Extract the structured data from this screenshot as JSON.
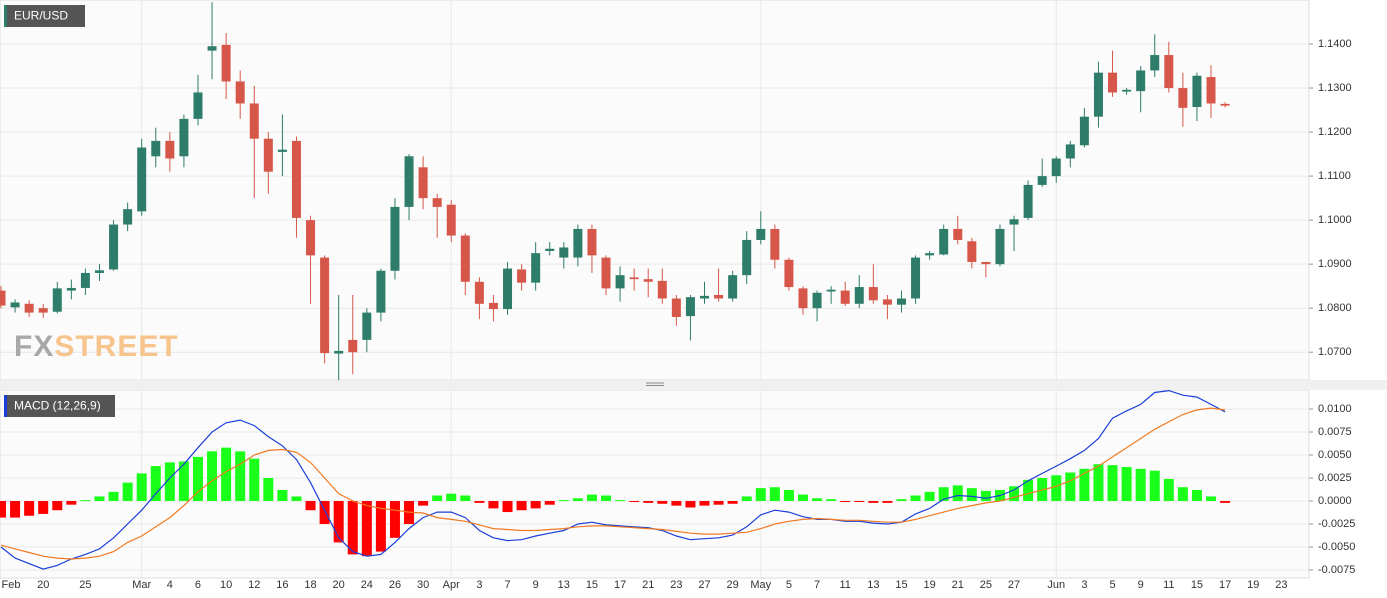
{
  "chart_data": [
    {
      "type": "candlestick",
      "title": "EUR/USD",
      "watermark": {
        "prefix": "FX",
        "suffix": "STREET"
      },
      "categories": [
        "Feb",
        null,
        null,
        "20",
        null,
        null,
        "25",
        null,
        null,
        null,
        "Mar",
        null,
        "4",
        null,
        "6",
        null,
        "10",
        null,
        "12",
        null,
        "16",
        null,
        "18",
        null,
        "20",
        null,
        "24",
        null,
        "26",
        null,
        "30",
        null,
        "Apr",
        null,
        "3",
        null,
        "7",
        null,
        "9",
        null,
        "13",
        null,
        "15",
        null,
        "17",
        null,
        "21",
        null,
        "23",
        null,
        "27",
        null,
        "29",
        null,
        "May",
        null,
        "5",
        null,
        "7",
        null,
        "11",
        null,
        "13",
        null,
        "15",
        null,
        "19",
        null,
        "21",
        null,
        "25",
        null,
        "27",
        null,
        null,
        "Jun",
        null,
        "3",
        null,
        "5",
        null,
        "9",
        null,
        "11",
        null,
        "15",
        null,
        "17",
        null,
        "19",
        null,
        "23"
      ],
      "open": [
        1.084,
        1.0802,
        1.081,
        1.08,
        1.0792,
        1.084,
        1.0846,
        1.088,
        1.0888,
        1.099,
        1.102,
        1.1145,
        1.118,
        1.1145,
        1.123,
        1.1385,
        1.1398,
        1.1315,
        1.1265,
        1.1185,
        1.1155,
        1.118,
        1.1,
        1.0915,
        1.0697,
        1.0728,
        1.0728,
        1.079,
        1.0885,
        1.103,
        1.112,
        1.105,
        1.1035,
        1.0965,
        1.086,
        1.0812,
        1.0798,
        1.0888,
        1.0858,
        1.093,
        1.0915,
        1.0915,
        1.098,
        1.0915,
        1.0845,
        1.087,
        1.0866,
        1.0862,
        1.0822,
        1.0782,
        1.0822,
        1.083,
        1.0822,
        1.0875,
        1.0955,
        1.098,
        1.091,
        1.0845,
        1.08,
        1.0838,
        1.084,
        1.081,
        1.0848,
        1.082,
        1.0808,
        1.0822,
        1.092,
        1.0922,
        1.098,
        1.0952,
        1.0905,
        1.09,
        1.099,
        1.1005,
        1.108,
        1.11,
        1.114,
        1.117,
        1.1235,
        1.1335,
        1.1292,
        1.1293,
        1.134,
        1.1375,
        1.13,
        1.1257,
        1.1325,
        1.1264,
        null,
        null,
        null,
        null
      ],
      "high": [
        1.085,
        1.082,
        1.0818,
        1.081,
        1.086,
        1.0865,
        1.089,
        1.09,
        1.1,
        1.104,
        1.1185,
        1.121,
        1.12,
        1.124,
        1.133,
        1.1495,
        1.1425,
        1.134,
        1.1305,
        1.12,
        1.124,
        1.119,
        1.101,
        1.092,
        1.083,
        1.083,
        1.08,
        1.089,
        1.105,
        1.115,
        1.1145,
        1.106,
        1.1045,
        1.097,
        1.087,
        1.083,
        1.0905,
        1.09,
        1.095,
        1.095,
        1.095,
        1.099,
        1.099,
        1.092,
        1.0895,
        1.089,
        1.089,
        1.089,
        1.083,
        1.083,
        1.086,
        1.089,
        1.0885,
        1.0975,
        1.102,
        1.099,
        1.0915,
        1.085,
        1.084,
        1.085,
        1.086,
        1.0875,
        1.09,
        1.083,
        1.084,
        1.092,
        1.093,
        1.099,
        1.101,
        1.096,
        1.0905,
        1.099,
        1.101,
        1.109,
        1.114,
        1.1145,
        1.118,
        1.1255,
        1.136,
        1.1385,
        1.13,
        1.135,
        1.1422,
        1.1405,
        1.1335,
        1.1335,
        1.1352,
        1.1268,
        null,
        null,
        null,
        null
      ],
      "low": [
        1.08,
        1.079,
        1.078,
        1.0778,
        1.0788,
        1.082,
        1.083,
        1.0862,
        1.0885,
        1.0975,
        1.101,
        1.112,
        1.111,
        1.112,
        1.1215,
        1.132,
        1.1275,
        1.123,
        1.105,
        1.106,
        1.11,
        1.096,
        1.081,
        1.0675,
        1.0636,
        1.065,
        1.07,
        1.077,
        1.0865,
        1.1,
        1.1025,
        1.096,
        1.095,
        1.083,
        1.0775,
        1.077,
        1.0785,
        1.084,
        1.084,
        1.092,
        1.089,
        1.0895,
        1.088,
        1.083,
        1.0815,
        1.084,
        1.0825,
        1.081,
        1.076,
        1.0727,
        1.081,
        1.0815,
        1.0815,
        1.0855,
        1.0945,
        1.089,
        1.084,
        1.0785,
        1.077,
        1.081,
        1.0805,
        1.08,
        1.081,
        1.0775,
        1.079,
        1.081,
        1.091,
        1.092,
        1.0945,
        1.089,
        1.087,
        1.0895,
        1.093,
        1.1,
        1.1075,
        1.1085,
        1.112,
        1.1165,
        1.121,
        1.128,
        1.1285,
        1.1245,
        1.1325,
        1.129,
        1.1212,
        1.1225,
        1.1232,
        1.1256,
        null,
        null,
        null,
        null
      ],
      "close": [
        1.0806,
        1.0813,
        1.079,
        1.079,
        1.0845,
        1.0846,
        1.088,
        1.0886,
        1.099,
        1.1025,
        1.1165,
        1.118,
        1.114,
        1.123,
        1.129,
        1.1395,
        1.1315,
        1.1265,
        1.1185,
        1.111,
        1.116,
        1.1005,
        1.092,
        1.0698,
        1.0703,
        1.07,
        1.079,
        1.0885,
        1.103,
        1.1145,
        1.105,
        1.103,
        1.0965,
        1.086,
        1.081,
        1.0798,
        1.089,
        1.0858,
        1.0925,
        1.0935,
        1.0938,
        1.098,
        1.092,
        1.0845,
        1.0875,
        1.0866,
        1.086,
        1.0822,
        1.078,
        1.0825,
        1.0828,
        1.0822,
        1.0875,
        1.0955,
        1.098,
        1.091,
        1.0848,
        1.08,
        1.0835,
        1.0842,
        1.081,
        1.0848,
        1.0818,
        1.0808,
        1.0822,
        1.0915,
        1.0925,
        1.098,
        1.0955,
        1.0905,
        1.09,
        1.098,
        1.1002,
        1.108,
        1.11,
        1.114,
        1.1172,
        1.1235,
        1.1335,
        1.129,
        1.1296,
        1.134,
        1.1375,
        1.13,
        1.1255,
        1.1328,
        1.1265,
        1.126,
        null,
        null,
        null,
        null
      ],
      "up_color": "#2e7d6a",
      "down_color": "#d6574a",
      "ylim": [
        1.0636,
        1.15
      ],
      "yticks": [
        {
          "value": 1.07,
          "label": "1.0700"
        },
        {
          "value": 1.08,
          "label": "1.0800"
        },
        {
          "value": 1.09,
          "label": "1.0900"
        },
        {
          "value": 1.1,
          "label": "1.1000"
        },
        {
          "value": 1.11,
          "label": "1.1100"
        },
        {
          "value": 1.12,
          "label": "1.1200"
        },
        {
          "value": 1.13,
          "label": "1.1300"
        },
        {
          "value": 1.14,
          "label": "1.1400"
        }
      ],
      "grid": true
    },
    {
      "type": "macd",
      "title": "MACD (12,26,9)",
      "histogram": {
        "values": [
          -0.0018,
          -0.0018,
          -0.0016,
          -0.0014,
          -0.001,
          -0.0004,
          0.0001,
          0.0005,
          0.001,
          0.002,
          0.003,
          0.0038,
          0.0042,
          0.0043,
          0.0048,
          0.0054,
          0.0058,
          0.0054,
          0.0046,
          0.0025,
          0.0012,
          0.0005,
          -0.001,
          -0.0025,
          -0.0045,
          -0.0058,
          -0.006,
          -0.0055,
          -0.004,
          -0.0025,
          -0.0005,
          0.0006,
          0.0008,
          0.0006,
          -0.0002,
          -0.0008,
          -0.0012,
          -0.001,
          -0.0008,
          -0.0004,
          0.0001,
          0.0003,
          0.0007,
          0.0006,
          0.0001,
          -0.0001,
          -0.0002,
          -0.0003,
          -0.0005,
          -0.0007,
          -0.0005,
          -0.0004,
          -0.0003,
          0.0005,
          0.0014,
          0.0015,
          0.0012,
          0.0007,
          0.0003,
          0.0002,
          -0.0001,
          -0.0001,
          -0.0002,
          -0.0002,
          0.0002,
          0.0006,
          0.001,
          0.0015,
          0.0017,
          0.0014,
          0.0011,
          0.0012,
          0.0016,
          0.0023,
          0.0025,
          0.0028,
          0.0031,
          0.0035,
          0.004,
          0.0039,
          0.0037,
          0.0035,
          0.0033,
          0.0024,
          0.0015,
          0.0012,
          0.0005,
          -0.0002,
          null,
          null,
          null,
          null
        ],
        "up_color": "#19ff19",
        "down_color": "#ff0000"
      },
      "series": [
        {
          "color": "#1a3fd8",
          "values": [
            -0.005,
            -0.0062,
            -0.0068,
            -0.0074,
            -0.007,
            -0.0063,
            -0.0058,
            -0.0052,
            -0.004,
            -0.0025,
            -0.001,
            0.0008,
            0.0025,
            0.004,
            0.0058,
            0.0075,
            0.0085,
            0.0088,
            0.0082,
            0.007,
            0.006,
            0.0045,
            0.002,
            -0.001,
            -0.004,
            -0.0055,
            -0.006,
            -0.0058,
            -0.0045,
            -0.003,
            -0.0018,
            -0.0012,
            -0.0012,
            -0.0018,
            -0.0032,
            -0.004,
            -0.0043,
            -0.0042,
            -0.0038,
            -0.0035,
            -0.0032,
            -0.0025,
            -0.0023,
            -0.0026,
            -0.0027,
            -0.0028,
            -0.0029,
            -0.0032,
            -0.0038,
            -0.0042,
            -0.0041,
            -0.004,
            -0.0037,
            -0.0028,
            -0.0015,
            -0.001,
            -0.0012,
            -0.0017,
            -0.002,
            -0.002,
            -0.0022,
            -0.0022,
            -0.0024,
            -0.0025,
            -0.0023,
            -0.0014,
            -0.0008,
            0.0002,
            0.0006,
            0.0005,
            0.0003,
            0.0006,
            0.0012,
            0.0022,
            0.003,
            0.0038,
            0.0046,
            0.0055,
            0.0068,
            0.009,
            0.0098,
            0.0105,
            0.0118,
            0.012,
            0.0115,
            0.0113,
            0.0105,
            0.0097,
            null,
            null,
            null,
            null
          ]
        },
        {
          "color": "#f07a22",
          "values": [
            -0.0048,
            -0.0052,
            -0.0056,
            -0.006,
            -0.0062,
            -0.0063,
            -0.0062,
            -0.006,
            -0.0055,
            -0.0045,
            -0.0038,
            -0.0028,
            -0.0018,
            -0.0005,
            0.001,
            0.0022,
            0.0032,
            0.004,
            0.005,
            0.0055,
            0.0056,
            0.0053,
            0.0042,
            0.0025,
            0.0008,
            0.0,
            -0.0005,
            -0.0008,
            -0.001,
            -0.0012,
            -0.0013,
            -0.0018,
            -0.002,
            -0.0022,
            -0.0026,
            -0.003,
            -0.0031,
            -0.0032,
            -0.0032,
            -0.0031,
            -0.003,
            -0.0028,
            -0.0027,
            -0.0027,
            -0.0028,
            -0.0029,
            -0.003,
            -0.0031,
            -0.0033,
            -0.0035,
            -0.0036,
            -0.0036,
            -0.0035,
            -0.0034,
            -0.003,
            -0.0025,
            -0.0022,
            -0.002,
            -0.0019,
            -0.002,
            -0.0021,
            -0.0021,
            -0.0022,
            -0.0023,
            -0.0023,
            -0.002,
            -0.0016,
            -0.0012,
            -0.0008,
            -0.0005,
            -0.0002,
            0.0,
            0.0004,
            0.0008,
            0.0012,
            0.0016,
            0.0022,
            0.003,
            0.0038,
            0.0048,
            0.0058,
            0.0068,
            0.0078,
            0.0086,
            0.0094,
            0.0099,
            0.0101,
            0.0099,
            null,
            null,
            null,
            null
          ]
        }
      ],
      "ylim": [
        -0.0084,
        0.0121
      ],
      "yticks": [
        -0.0075,
        {
          "value": -0.005,
          "label": "-0.0050"
        },
        -0.0025,
        {
          "value": 0,
          "label": "0.0000"
        },
        0.0025,
        {
          "value": 0.005,
          "label": "0.0050"
        },
        0.0075,
        {
          "value": 0.01,
          "label": "0.0100"
        }
      ],
      "grid": true
    }
  ]
}
